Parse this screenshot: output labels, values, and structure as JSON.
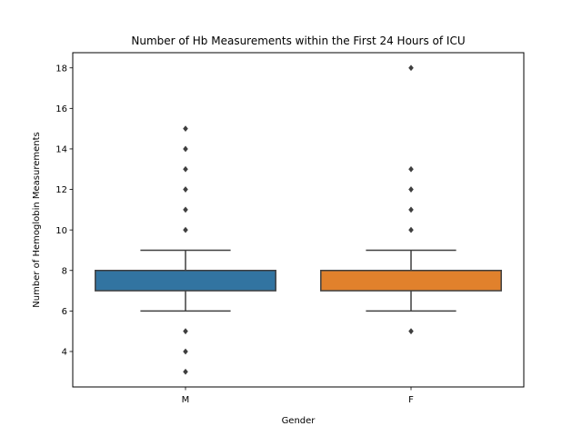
{
  "chart_data": {
    "type": "box",
    "title": "Number of Hb Measurements within the First 24 Hours of ICU",
    "xlabel": "Gender",
    "ylabel": "Number of Hemoglobin Measurements",
    "ylim": [
      2.25,
      18.75
    ],
    "yticks": [
      4,
      6,
      8,
      10,
      12,
      14,
      16,
      18
    ],
    "categories": [
      "M",
      "F"
    ],
    "series": [
      {
        "category": "M",
        "color": "#3274a1",
        "q1": 7,
        "median": 8,
        "q3": 8,
        "whisker_low": 6,
        "whisker_high": 9,
        "outliers": [
          3,
          4,
          5,
          10,
          11,
          12,
          13,
          14,
          15
        ]
      },
      {
        "category": "F",
        "color": "#e1812c",
        "q1": 7,
        "median": 8,
        "q3": 8,
        "whisker_low": 6,
        "whisker_high": 9,
        "outliers": [
          5,
          10,
          11,
          12,
          13,
          18
        ]
      }
    ],
    "grid": false,
    "legend": "none",
    "line_color": "#3f3f3f"
  }
}
